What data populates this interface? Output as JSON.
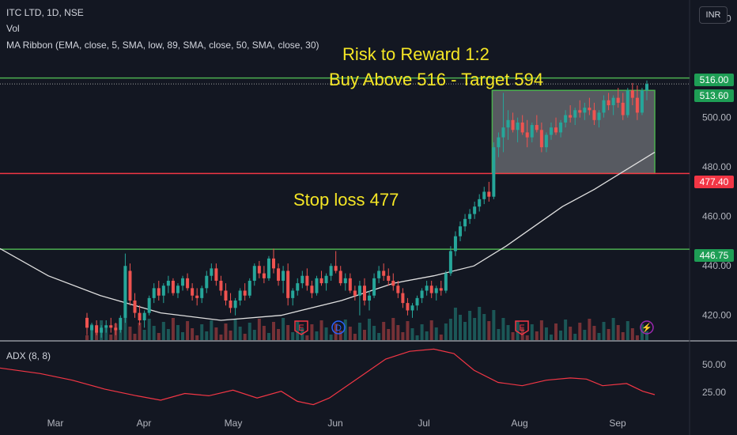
{
  "header": {
    "symbol": "ITC LTD, 1D, NSE",
    "vol_label": "Vol",
    "ma_ribbon_label": "MA Ribbon (EMA, close, 5, SMA, low, 89, SMA, close, 50, SMA, close, 30)",
    "currency_button": "INR",
    "adx_label": "ADX (8, 8)"
  },
  "annotations": {
    "risk_reward": "Risk to Reward 1:2",
    "buy_above": "Buy Above 516 - Target 594",
    "stop_loss": "Stop loss 477"
  },
  "price_tags": {
    "resistance": "516.00",
    "last_price": "513.60",
    "stop": "477.40",
    "support": "446.75"
  },
  "colors": {
    "background": "#131722",
    "up": "#26a69a",
    "down": "#ef5350",
    "ma_line": "#e0e0e0",
    "annotation": "#f5e625",
    "green_level": "#4caf50",
    "red_level": "#f23645",
    "adx_line": "#f23645"
  },
  "event_markers": [
    {
      "label": "E",
      "date": "May 24",
      "type": "earnings"
    },
    {
      "label": "D",
      "date": "Jun 4",
      "type": "dividend"
    },
    {
      "label": "E",
      "date": "Aug 1",
      "type": "earnings"
    },
    {
      "label": "⚡",
      "date": "Sep 11",
      "type": "event"
    }
  ],
  "chart_data": {
    "type": "candlestick",
    "price_axis": {
      "ticks": [
        "540.00",
        "500.00",
        "480.00",
        "460.00",
        "440.00",
        "420.00"
      ],
      "range": [
        410,
        545
      ]
    },
    "adx_axis": {
      "ticks": [
        "50.00",
        "25.00"
      ],
      "range": [
        8,
        70
      ]
    },
    "x_ticks": [
      "Mar",
      "Apr",
      "May",
      "Jun",
      "Jul",
      "Aug",
      "Sep"
    ],
    "levels": [
      {
        "value": 516.0,
        "color": "green"
      },
      {
        "value": 477.4,
        "color": "red"
      },
      {
        "value": 446.75,
        "color": "green"
      }
    ],
    "consolidation_box": {
      "x": [
        "Jul 19",
        "Sep 13"
      ],
      "price": [
        477.4,
        511
      ]
    },
    "ohlc": [
      [
        419,
        421,
        412,
        415
      ],
      [
        414,
        417,
        410,
        416
      ],
      [
        416,
        418,
        412,
        413
      ],
      [
        413,
        416,
        411,
        415
      ],
      [
        415,
        418,
        413,
        416
      ],
      [
        416,
        419,
        413,
        415
      ],
      [
        415,
        417,
        412,
        414
      ],
      [
        414,
        420,
        413,
        419
      ],
      [
        419,
        445,
        417,
        440
      ],
      [
        438,
        441,
        424,
        426
      ],
      [
        426,
        429,
        419,
        421
      ],
      [
        421,
        424,
        416,
        418
      ],
      [
        418,
        422,
        415,
        421
      ],
      [
        421,
        428,
        420,
        427
      ],
      [
        427,
        433,
        425,
        431
      ],
      [
        431,
        434,
        426,
        428
      ],
      [
        428,
        433,
        425,
        432
      ],
      [
        432,
        436,
        429,
        434
      ],
      [
        434,
        435,
        428,
        429
      ],
      [
        429,
        433,
        427,
        432
      ],
      [
        432,
        436,
        430,
        435
      ],
      [
        435,
        437,
        430,
        431
      ],
      [
        431,
        433,
        426,
        428
      ],
      [
        428,
        431,
        424,
        427
      ],
      [
        427,
        432,
        425,
        431
      ],
      [
        431,
        438,
        429,
        436
      ],
      [
        436,
        441,
        434,
        439
      ],
      [
        439,
        441,
        432,
        434
      ],
      [
        434,
        436,
        428,
        430
      ],
      [
        430,
        433,
        424,
        426
      ],
      [
        426,
        429,
        421,
        423
      ],
      [
        423,
        427,
        420,
        426
      ],
      [
        426,
        431,
        424,
        430
      ],
      [
        430,
        433,
        426,
        428
      ],
      [
        428,
        435,
        427,
        434
      ],
      [
        434,
        441,
        432,
        440
      ],
      [
        440,
        442,
        435,
        437
      ],
      [
        437,
        440,
        433,
        435
      ],
      [
        435,
        444,
        434,
        443
      ],
      [
        443,
        447,
        437,
        439
      ],
      [
        439,
        441,
        432,
        434
      ],
      [
        434,
        440,
        429,
        438
      ],
      [
        438,
        441,
        424,
        427
      ],
      [
        427,
        431,
        424,
        430
      ],
      [
        430,
        435,
        428,
        433
      ],
      [
        433,
        438,
        431,
        436
      ],
      [
        436,
        439,
        430,
        432
      ],
      [
        432,
        434,
        427,
        429
      ],
      [
        429,
        436,
        428,
        435
      ],
      [
        435,
        438,
        432,
        433
      ],
      [
        433,
        437,
        430,
        436
      ],
      [
        436,
        441,
        434,
        440
      ],
      [
        440,
        446,
        437,
        438
      ],
      [
        438,
        440,
        432,
        433
      ],
      [
        433,
        437,
        430,
        435
      ],
      [
        435,
        437,
        429,
        430
      ],
      [
        430,
        432,
        426,
        428
      ],
      [
        428,
        434,
        420,
        432
      ],
      [
        432,
        435,
        424,
        426
      ],
      [
        426,
        430,
        422,
        428
      ],
      [
        428,
        437,
        427,
        435
      ],
      [
        435,
        440,
        433,
        438
      ],
      [
        438,
        441,
        434,
        436
      ],
      [
        436,
        439,
        432,
        434
      ],
      [
        434,
        437,
        430,
        432
      ],
      [
        432,
        434,
        427,
        429
      ],
      [
        429,
        431,
        423,
        425
      ],
      [
        425,
        427,
        420,
        422
      ],
      [
        422,
        425,
        419,
        424
      ],
      [
        424,
        428,
        422,
        427
      ],
      [
        427,
        431,
        425,
        430
      ],
      [
        430,
        434,
        428,
        432
      ],
      [
        432,
        434,
        427,
        429
      ],
      [
        429,
        432,
        426,
        431
      ],
      [
        431,
        434,
        428,
        430
      ],
      [
        430,
        438,
        429,
        437
      ],
      [
        437,
        448,
        436,
        446
      ],
      [
        446,
        454,
        444,
        452
      ],
      [
        452,
        458,
        450,
        456
      ],
      [
        456,
        461,
        454,
        459
      ],
      [
        459,
        463,
        457,
        461
      ],
      [
        461,
        466,
        459,
        464
      ],
      [
        464,
        469,
        462,
        467
      ],
      [
        467,
        472,
        465,
        470
      ],
      [
        470,
        474,
        466,
        468
      ],
      [
        468,
        490,
        467,
        488
      ],
      [
        488,
        494,
        484,
        492
      ],
      [
        492,
        510,
        486,
        496
      ],
      [
        496,
        503,
        491,
        499
      ],
      [
        499,
        502,
        494,
        495
      ],
      [
        495,
        500,
        490,
        498
      ],
      [
        498,
        501,
        493,
        494
      ],
      [
        494,
        499,
        488,
        492
      ],
      [
        492,
        498,
        490,
        497
      ],
      [
        497,
        501,
        494,
        495
      ],
      [
        495,
        498,
        486,
        488
      ],
      [
        488,
        494,
        486,
        493
      ],
      [
        493,
        498,
        491,
        496
      ],
      [
        496,
        500,
        493,
        494
      ],
      [
        494,
        499,
        492,
        498
      ],
      [
        498,
        503,
        496,
        501
      ],
      [
        501,
        505,
        498,
        500
      ],
      [
        500,
        504,
        497,
        503
      ],
      [
        503,
        507,
        500,
        502
      ],
      [
        502,
        506,
        499,
        504
      ],
      [
        504,
        508,
        501,
        503
      ],
      [
        503,
        506,
        497,
        499
      ],
      [
        499,
        503,
        496,
        502
      ],
      [
        502,
        509,
        500,
        507
      ],
      [
        507,
        510,
        503,
        505
      ],
      [
        505,
        509,
        501,
        508
      ],
      [
        508,
        512,
        504,
        506
      ],
      [
        506,
        510,
        499,
        501
      ],
      [
        501,
        512,
        500,
        511
      ],
      [
        511,
        514,
        505,
        508
      ],
      [
        508,
        513,
        499,
        502
      ],
      [
        502,
        512,
        501,
        511
      ],
      [
        511,
        515,
        507,
        513.6
      ]
    ],
    "ma": [
      [
        0,
        447
      ],
      [
        12,
        436
      ],
      [
        25,
        428
      ],
      [
        40,
        421
      ],
      [
        55,
        418
      ],
      [
        70,
        420
      ],
      [
        85,
        426
      ],
      [
        98,
        433
      ],
      [
        108,
        436
      ],
      [
        118,
        440
      ],
      [
        126,
        448
      ],
      [
        133,
        456
      ],
      [
        140,
        464
      ],
      [
        148,
        471
      ],
      [
        156,
        479
      ],
      [
        163,
        486
      ]
    ],
    "adx": [
      [
        0,
        47
      ],
      [
        10,
        42
      ],
      [
        18,
        36
      ],
      [
        26,
        28
      ],
      [
        34,
        22
      ],
      [
        40,
        18
      ],
      [
        46,
        24
      ],
      [
        52,
        22
      ],
      [
        58,
        27
      ],
      [
        64,
        20
      ],
      [
        70,
        26
      ],
      [
        74,
        17
      ],
      [
        78,
        14
      ],
      [
        82,
        20
      ],
      [
        90,
        40
      ],
      [
        96,
        55
      ],
      [
        102,
        62
      ],
      [
        108,
        64
      ],
      [
        113,
        60
      ],
      [
        118,
        45
      ],
      [
        124,
        34
      ],
      [
        130,
        31
      ],
      [
        136,
        36
      ],
      [
        142,
        38
      ],
      [
        146,
        37
      ],
      [
        150,
        31
      ],
      [
        156,
        33
      ],
      [
        160,
        26
      ],
      [
        163,
        23
      ]
    ],
    "ma_x_scale": {
      "index_range": [
        0,
        163
      ],
      "start_offset_index": -44
    }
  }
}
